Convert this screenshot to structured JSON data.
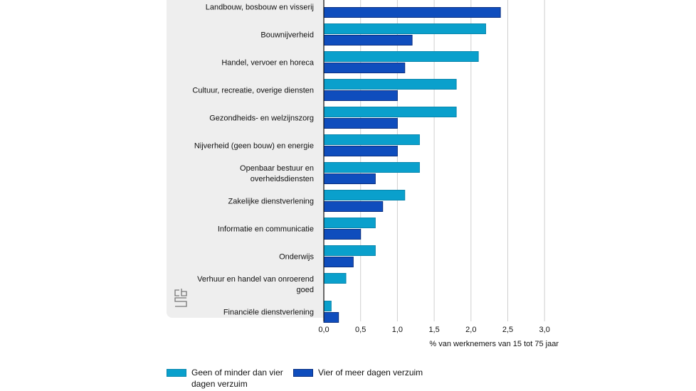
{
  "chart_data": {
    "type": "bar",
    "orientation": "horizontal",
    "title": "",
    "xlabel": "% van werknemers van 15 tot 75 jaar",
    "ylabel": "",
    "xlim": [
      0,
      3.0
    ],
    "xticks": [
      "0,0",
      "0,5",
      "1,0",
      "1,5",
      "2,0",
      "2,5",
      "3,0"
    ],
    "grid": true,
    "legend_position": "bottom-left",
    "categories": [
      [
        "Landbouw, bosbouw en visserij"
      ],
      [
        "Bouwnijverheid"
      ],
      [
        "Handel, vervoer en horeca"
      ],
      [
        "Cultuur, recreatie, overige diensten"
      ],
      [
        "Gezondheids- en welzijnszorg"
      ],
      [
        "Nijverheid (geen bouw) en energie"
      ],
      [
        "Openbaar bestuur en",
        "overheidsdiensten"
      ],
      [
        "Zakelijke dienstverlening"
      ],
      [
        "Informatie en communicatie"
      ],
      [
        "Onderwijs"
      ],
      [
        "Verhuur en handel van onroerend",
        "goed"
      ],
      [
        "Financiële dienstverlening"
      ]
    ],
    "series": [
      {
        "name": "Geen of minder dan vier dagen verzuim",
        "color": "#0aa0cc",
        "values": [
          null,
          2.2,
          2.1,
          1.8,
          1.8,
          1.3,
          1.3,
          1.1,
          0.7,
          0.7,
          0.3,
          0.1
        ]
      },
      {
        "name": "Vier of meer dagen verzuim",
        "color": "#0f4dbd",
        "values": [
          2.4,
          1.2,
          1.1,
          1.0,
          1.0,
          1.0,
          0.7,
          0.8,
          0.5,
          0.4,
          null,
          0.2
        ]
      }
    ]
  },
  "legend": {
    "item1_line1": "Geen of minder dan vier",
    "item1_line2": "dagen verzuim",
    "item2": "Vier of meer dagen verzuim"
  },
  "logo": "cbs-logo"
}
